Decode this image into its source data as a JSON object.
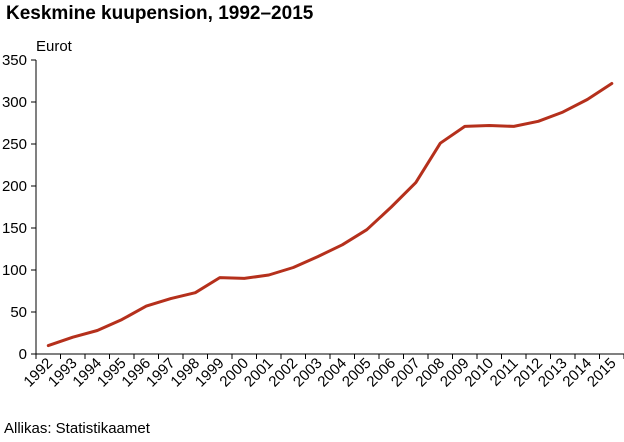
{
  "chart_data": {
    "type": "line",
    "title": "Keskmine kuupension, 1992–2015",
    "ylabel": "Eurot",
    "xlabel": "",
    "ylim": [
      0,
      350
    ],
    "yticks": [
      0,
      50,
      100,
      150,
      200,
      250,
      300,
      350
    ],
    "grid": false,
    "categories": [
      "1992",
      "1993",
      "1994",
      "1995",
      "1996",
      "1997",
      "1998",
      "1999",
      "2000",
      "2001",
      "2002",
      "2003",
      "2004",
      "2005",
      "2006",
      "2007",
      "2008",
      "2009",
      "2010",
      "2011",
      "2012",
      "2013",
      "2014",
      "2015"
    ],
    "series": [
      {
        "color": "#b5301c",
        "values": [
          10,
          20,
          28,
          41,
          57,
          66,
          73,
          91,
          90,
          94,
          103,
          116,
          130,
          148,
          175,
          204,
          251,
          271,
          272,
          271,
          277,
          288,
          303,
          322
        ]
      }
    ],
    "source": "Allikas: Statistikaamet"
  }
}
